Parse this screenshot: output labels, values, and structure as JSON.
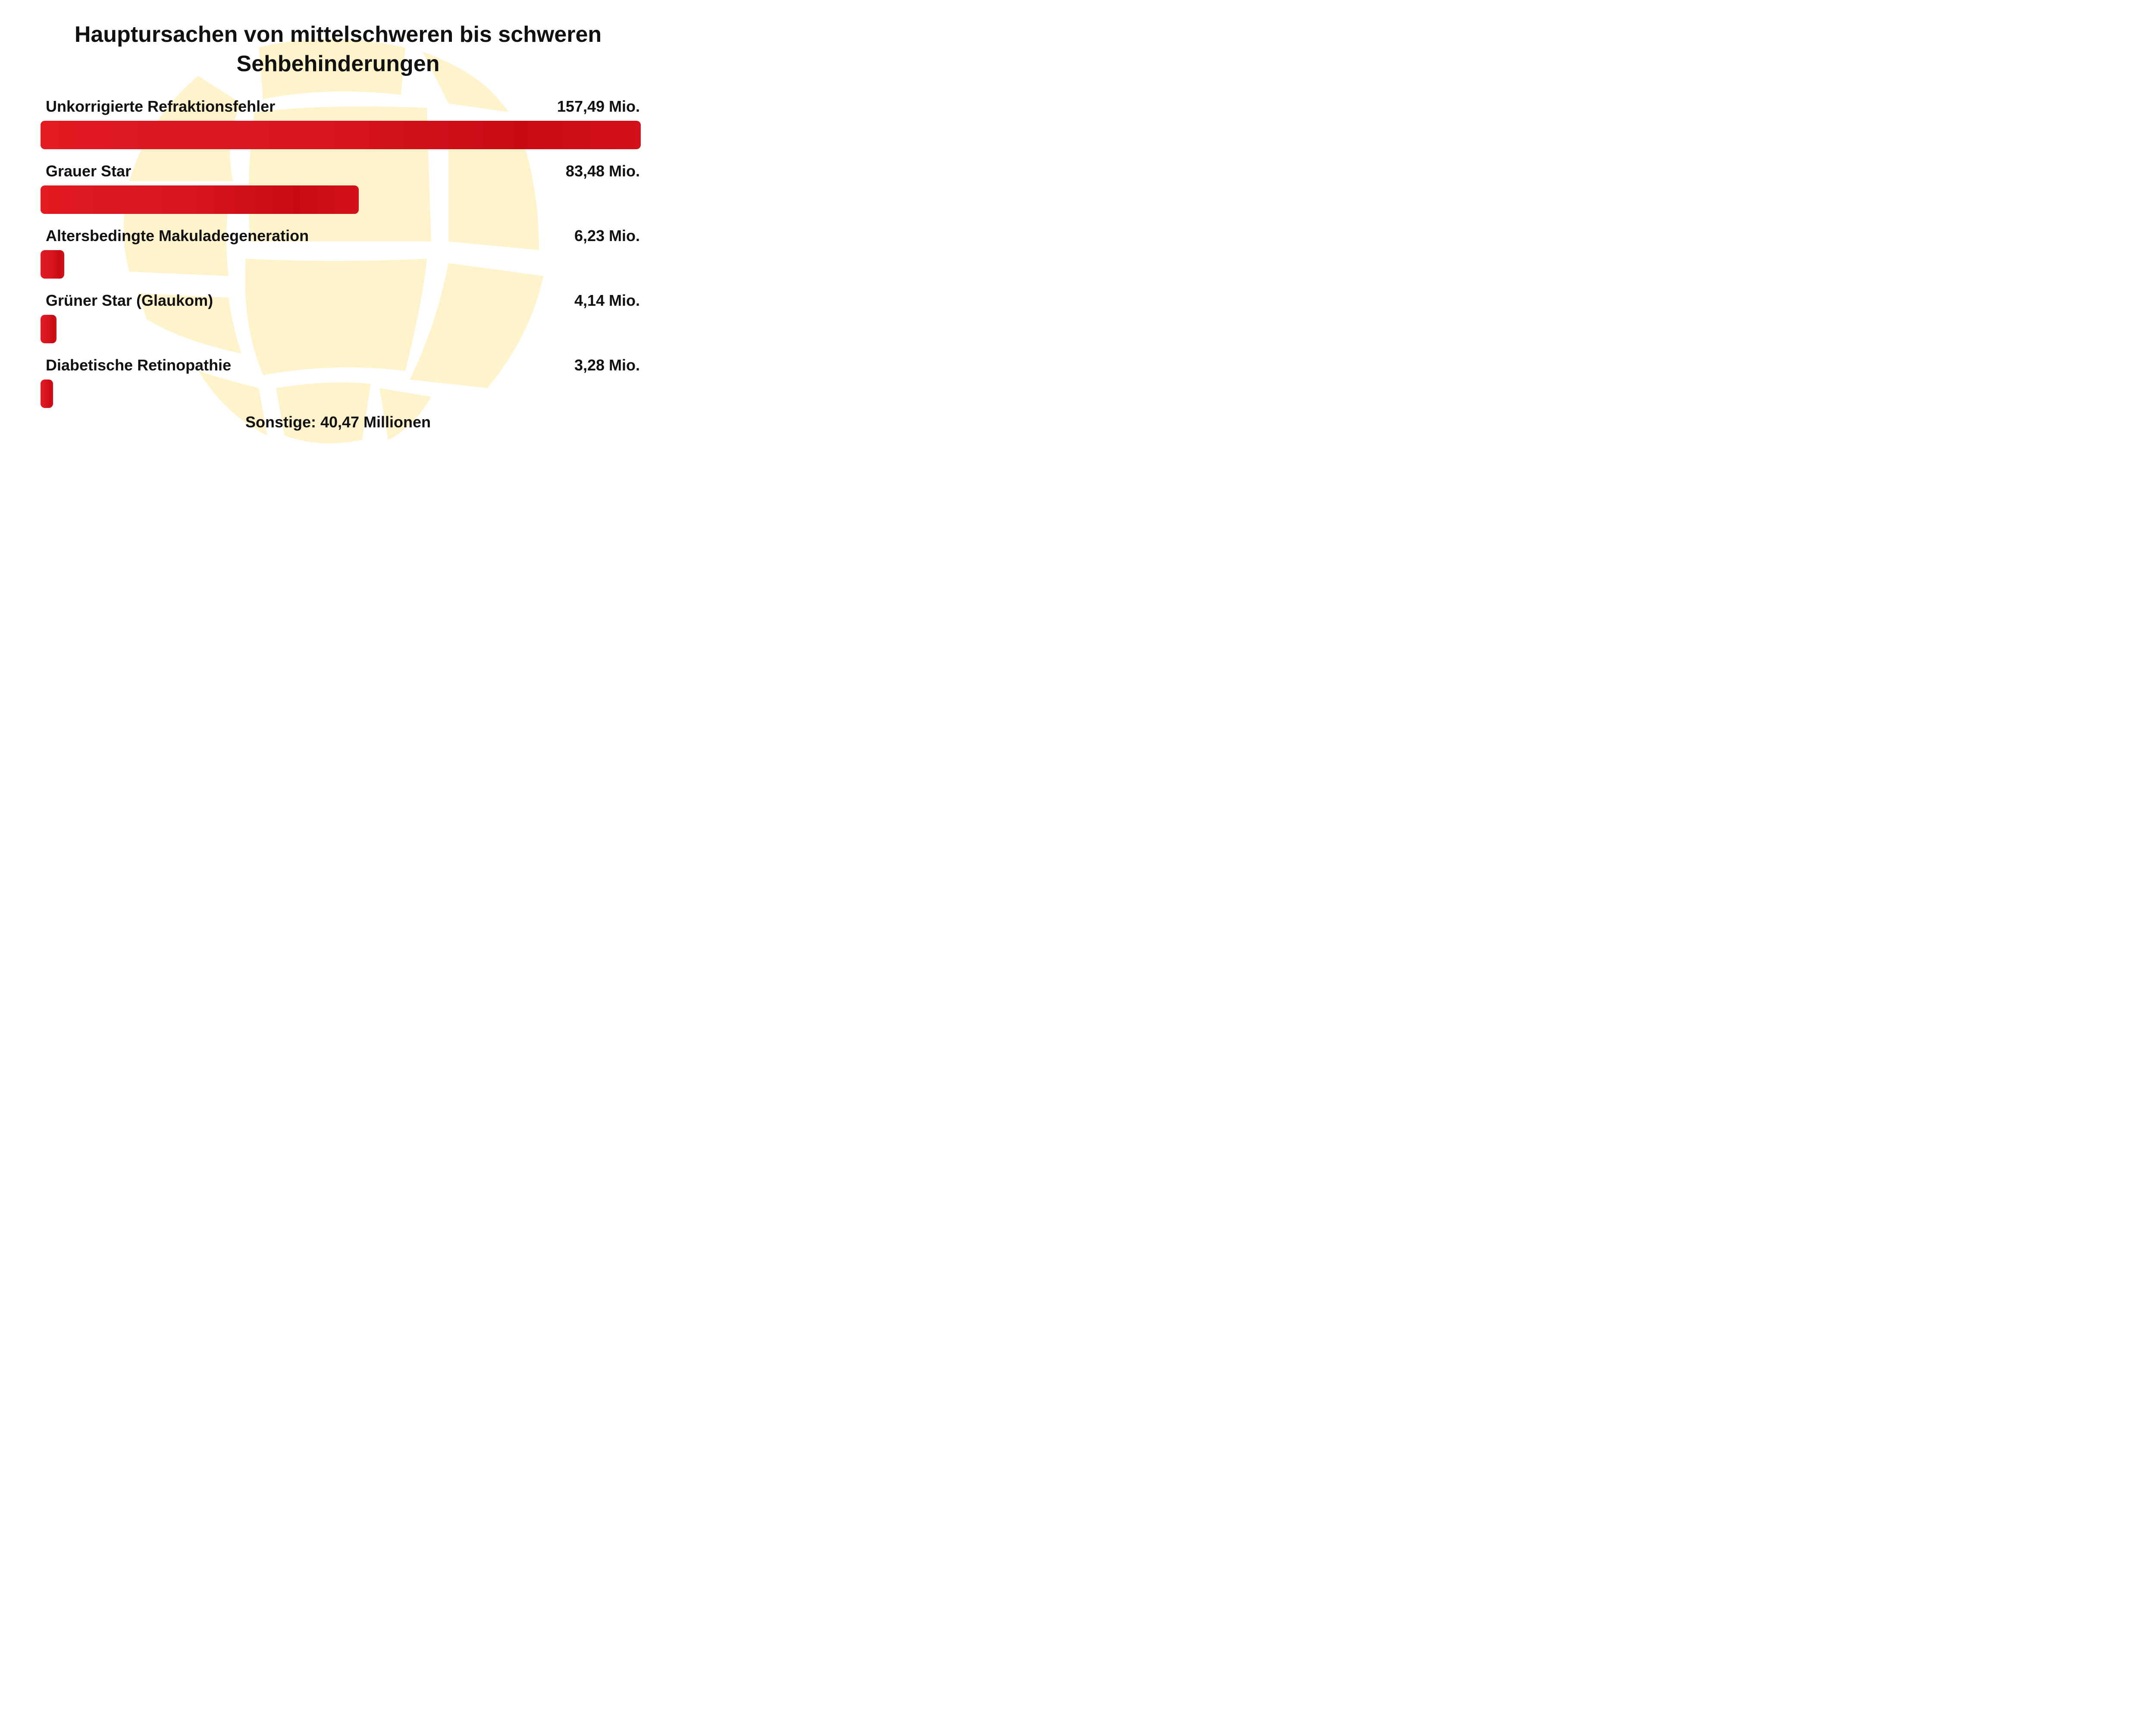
{
  "chart_data": {
    "type": "bar",
    "orientation": "horizontal",
    "title": "Hauptursachen von mittelschweren bis schweren Sehbehinderungen",
    "categories": [
      "Unkorrigierte Refraktionsfehler",
      "Grauer Star",
      "Altersbedingte Makuladegeneration",
      "Grüner Star (Glaukom)",
      "Diabetische Retinopathie"
    ],
    "values": [
      157.49,
      83.48,
      6.23,
      4.14,
      3.28
    ],
    "value_labels": [
      "157,49 Mio.",
      "83,48 Mio.",
      "6,23 Mio.",
      "4,14 Mio.",
      "3,28 Mio."
    ],
    "xlim": [
      0,
      157.49
    ],
    "grid": false,
    "footer": "Sonstige: 40,47 Millionen"
  },
  "colors": {
    "bar": "#d81620",
    "globe": "#fff3cc",
    "text": "#111111"
  },
  "background_icon": "globe-icon"
}
